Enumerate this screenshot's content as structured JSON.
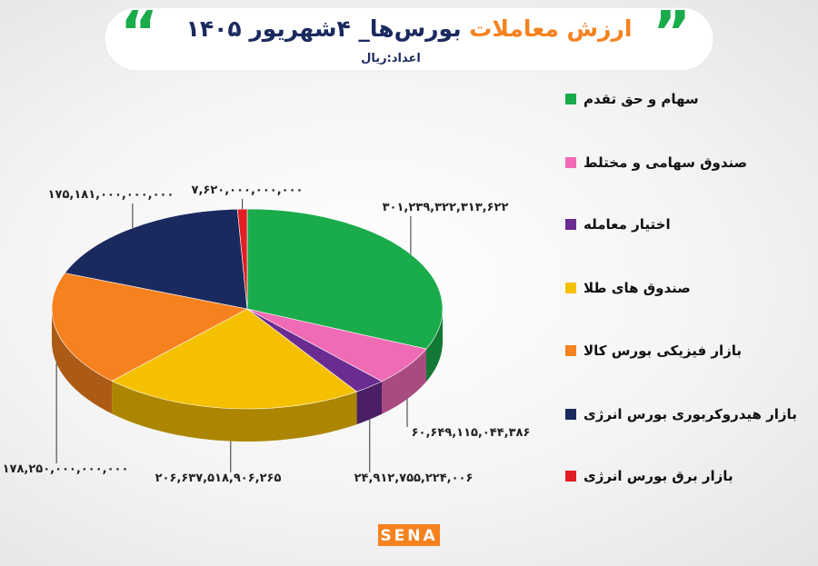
{
  "chart_data": {
    "type": "pie",
    "title_parts": [
      "ارزش معاملات",
      "بورس‌ها_ ۴شهریور ۱۴۰۵"
    ],
    "title_colors": [
      "#f5821f",
      "#1b2a5e"
    ],
    "subtitle": "اعداد:ریال",
    "categories": [
      "سهام و حق تقدم",
      "صندوق سهامی و مختلط",
      "اختیار معامله",
      "صندوق های طلا",
      "بازار فیزیکی بورس کالا",
      "بازار هیدروکربوری بورس انرژی",
      "بازار برق بورس انرژی"
    ],
    "values": [
      301239322313622,
      60649115044386,
      24912755224006,
      206637518906265,
      178250000000000,
      175181000000000,
      7620000000000
    ],
    "value_labels": [
      "۳۰۱,۲۳۹,۳۲۲,۳۱۳,۶۲۲",
      "۶۰,۶۴۹,۱۱۵,۰۴۴,۳۸۶",
      "۲۴,۹۱۲,۷۵۵,۲۲۴,۰۰۶",
      "۲۰۶,۶۳۷,۵۱۸,۹۰۶,۲۶۵",
      "۱۷۸,۲۵۰,۰۰۰,۰۰۰,۰۰۰",
      "۱۷۵,۱۸۱,۰۰۰,۰۰۰,۰۰۰",
      "۷,۶۲۰,۰۰۰,۰۰۰,۰۰۰"
    ],
    "colors": [
      "#1aab4b",
      "#f06bb5",
      "#6a2c91",
      "#f5c000",
      "#f5821f",
      "#1b2a5e",
      "#e31e24"
    ],
    "logo": "SENA"
  }
}
